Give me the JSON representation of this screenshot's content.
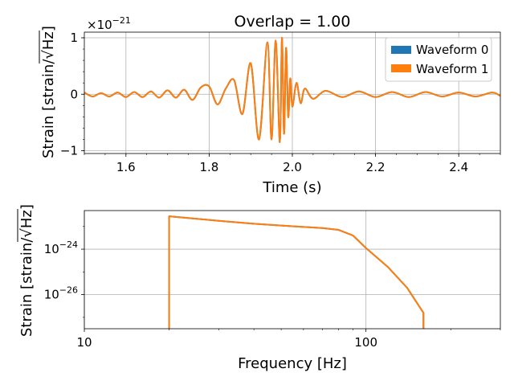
{
  "chart_data": [
    {
      "type": "line",
      "title": "Overlap = 1.00",
      "xlabel": "Time (s)",
      "ylabel": "Strain [strain/√Hz]",
      "ylabel_main": "Strain [strain/√",
      "ylabel_radicand": "Hz",
      "ylabel_close": "]",
      "xlim": [
        1.5,
        2.5
      ],
      "ylim": [
        -1.05,
        1.1
      ],
      "offset_text_base": "×10",
      "offset_text_exp": "−21",
      "grid": true,
      "legend_position": "top-right",
      "xticks": [
        {
          "value": 1.6,
          "label": "1.6"
        },
        {
          "value": 1.8,
          "label": "1.8"
        },
        {
          "value": 2.0,
          "label": "2.0"
        },
        {
          "value": 2.2,
          "label": "2.2"
        },
        {
          "value": 2.4,
          "label": "2.4"
        }
      ],
      "yticks": [
        {
          "value": -1,
          "label": "−1"
        },
        {
          "value": 0,
          "label": "0"
        },
        {
          "value": 1,
          "label": "1"
        }
      ],
      "series": [
        {
          "name": "Waveform 0",
          "color": "#1f77b4",
          "points": [
            [
              1.5,
              0.03
            ],
            [
              1.52,
              -0.04
            ],
            [
              1.54,
              0.02
            ],
            [
              1.56,
              -0.04
            ],
            [
              1.58,
              0.03
            ],
            [
              1.6,
              -0.05
            ],
            [
              1.62,
              0.04
            ],
            [
              1.64,
              -0.05
            ],
            [
              1.66,
              0.05
            ],
            [
              1.68,
              -0.06
            ],
            [
              1.7,
              0.07
            ],
            [
              1.72,
              -0.06
            ],
            [
              1.74,
              0.08
            ],
            [
              1.76,
              -0.1
            ],
            [
              1.78,
              0.12
            ],
            [
              1.8,
              0.14
            ],
            [
              1.82,
              -0.18
            ],
            [
              1.84,
              0.1
            ],
            [
              1.86,
              0.25
            ],
            [
              1.88,
              -0.35
            ],
            [
              1.9,
              0.55
            ],
            [
              1.92,
              -0.8
            ],
            [
              1.94,
              0.92
            ],
            [
              1.95,
              -0.8
            ],
            [
              1.96,
              0.95
            ],
            [
              1.97,
              -0.85
            ],
            [
              1.975,
              1.0
            ],
            [
              1.98,
              -0.7
            ],
            [
              1.985,
              0.82
            ],
            [
              1.99,
              -0.4
            ],
            [
              1.995,
              0.28
            ],
            [
              2.0,
              -0.22
            ],
            [
              2.01,
              0.2
            ],
            [
              2.02,
              -0.16
            ],
            [
              2.03,
              0.1
            ],
            [
              2.05,
              -0.08
            ],
            [
              2.08,
              0.06
            ],
            [
              2.12,
              -0.05
            ],
            [
              2.16,
              0.05
            ],
            [
              2.2,
              -0.05
            ],
            [
              2.24,
              0.04
            ],
            [
              2.28,
              -0.05
            ],
            [
              2.32,
              0.04
            ],
            [
              2.36,
              -0.04
            ],
            [
              2.4,
              0.03
            ],
            [
              2.44,
              -0.04
            ],
            [
              2.48,
              0.03
            ],
            [
              2.5,
              -0.03
            ]
          ]
        },
        {
          "name": "Waveform 1",
          "color": "#ff7f0e",
          "points": [
            [
              1.5,
              0.03
            ],
            [
              1.52,
              -0.04
            ],
            [
              1.54,
              0.02
            ],
            [
              1.56,
              -0.04
            ],
            [
              1.58,
              0.03
            ],
            [
              1.6,
              -0.05
            ],
            [
              1.62,
              0.04
            ],
            [
              1.64,
              -0.05
            ],
            [
              1.66,
              0.05
            ],
            [
              1.68,
              -0.06
            ],
            [
              1.7,
              0.07
            ],
            [
              1.72,
              -0.06
            ],
            [
              1.74,
              0.08
            ],
            [
              1.76,
              -0.1
            ],
            [
              1.78,
              0.12
            ],
            [
              1.8,
              0.14
            ],
            [
              1.82,
              -0.18
            ],
            [
              1.84,
              0.1
            ],
            [
              1.86,
              0.25
            ],
            [
              1.88,
              -0.35
            ],
            [
              1.9,
              0.55
            ],
            [
              1.92,
              -0.8
            ],
            [
              1.94,
              0.92
            ],
            [
              1.95,
              -0.8
            ],
            [
              1.96,
              0.95
            ],
            [
              1.97,
              -0.85
            ],
            [
              1.975,
              1.0
            ],
            [
              1.98,
              -0.7
            ],
            [
              1.985,
              0.82
            ],
            [
              1.99,
              -0.4
            ],
            [
              1.995,
              0.28
            ],
            [
              2.0,
              -0.22
            ],
            [
              2.01,
              0.2
            ],
            [
              2.02,
              -0.16
            ],
            [
              2.03,
              0.1
            ],
            [
              2.05,
              -0.08
            ],
            [
              2.08,
              0.06
            ],
            [
              2.12,
              -0.05
            ],
            [
              2.16,
              0.05
            ],
            [
              2.2,
              -0.05
            ],
            [
              2.24,
              0.04
            ],
            [
              2.28,
              -0.05
            ],
            [
              2.32,
              0.04
            ],
            [
              2.36,
              -0.04
            ],
            [
              2.4,
              0.03
            ],
            [
              2.44,
              -0.04
            ],
            [
              2.48,
              0.03
            ],
            [
              2.5,
              -0.03
            ]
          ]
        }
      ]
    },
    {
      "type": "line",
      "title": "",
      "xlabel": "Frequency [Hz]",
      "ylabel": "Strain [strain/√Hz]",
      "ylabel_main": "Strain [strain/√",
      "ylabel_radicand": "Hz",
      "ylabel_close": "]",
      "xscale": "log",
      "yscale": "log",
      "xlim": [
        10,
        300
      ],
      "ylim_log10": [
        -27.5,
        -22.3
      ],
      "grid": true,
      "xticks": [
        {
          "value": 10,
          "label": "10"
        },
        {
          "value": 100,
          "label": "100"
        }
      ],
      "yticks": [
        {
          "value_log10": -24,
          "base": "10",
          "exp": "−24"
        },
        {
          "value_log10": -26,
          "base": "10",
          "exp": "−26"
        }
      ],
      "series": [
        {
          "name": "Waveform 0",
          "color": "#1f77b4",
          "points_log10": [
            [
              20,
              -27.5
            ],
            [
              20,
              -22.55
            ],
            [
              30,
              -22.75
            ],
            [
              40,
              -22.88
            ],
            [
              50,
              -22.96
            ],
            [
              60,
              -23.02
            ],
            [
              70,
              -23.07
            ],
            [
              80,
              -23.15
            ],
            [
              90,
              -23.4
            ],
            [
              100,
              -23.95
            ],
            [
              120,
              -24.8
            ],
            [
              140,
              -25.7
            ],
            [
              160,
              -26.8
            ],
            [
              160,
              -27.5
            ]
          ]
        },
        {
          "name": "Waveform 1",
          "color": "#ff7f0e",
          "points_log10": [
            [
              20,
              -27.5
            ],
            [
              20,
              -22.55
            ],
            [
              30,
              -22.75
            ],
            [
              40,
              -22.88
            ],
            [
              50,
              -22.96
            ],
            [
              60,
              -23.02
            ],
            [
              70,
              -23.07
            ],
            [
              80,
              -23.15
            ],
            [
              90,
              -23.4
            ],
            [
              100,
              -23.95
            ],
            [
              120,
              -24.8
            ],
            [
              140,
              -25.7
            ],
            [
              160,
              -26.8
            ],
            [
              160,
              -27.5
            ]
          ]
        }
      ]
    }
  ]
}
